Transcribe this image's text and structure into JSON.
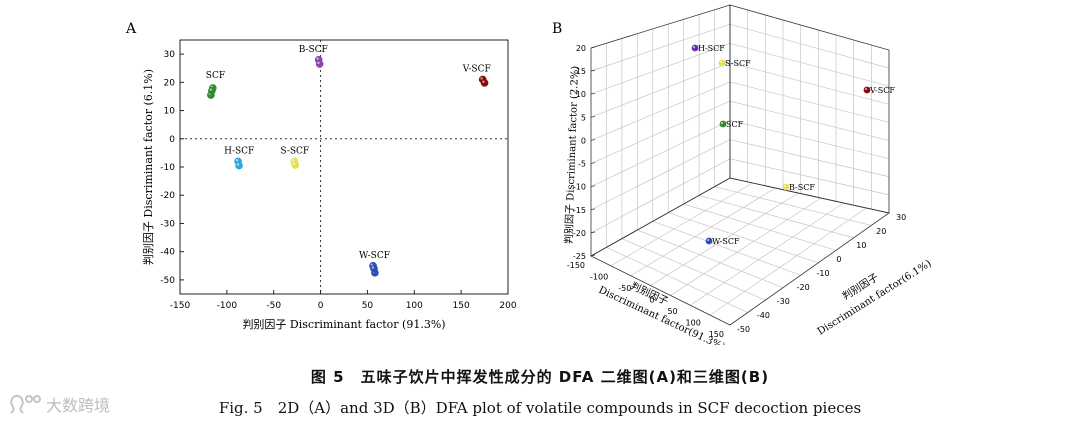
{
  "chart_data": [
    {
      "panel": "A",
      "type": "scatter",
      "xlabel": "判别因子 Discriminant factor (91.3%)",
      "ylabel": "判别因子 Discriminant factor (6.1%)",
      "xlim": [
        -150,
        200
      ],
      "ylim": [
        -55,
        35
      ],
      "xticks": [
        -150,
        -100,
        -50,
        0,
        50,
        100,
        150,
        200
      ],
      "yticks": [
        -50,
        -40,
        -30,
        -20,
        -10,
        0,
        10,
        20,
        30
      ],
      "reference_lines": "dotted lines at x=0 and y=0",
      "series": [
        {
          "name": "SCF",
          "color": "#2e8b2e",
          "points": [
            [
              -115,
              18
            ],
            [
              -117,
              15.5
            ],
            [
              -116,
              17
            ]
          ]
        },
        {
          "name": "B-SCF",
          "color": "#8e44ad",
          "points": [
            [
              -2,
              28
            ],
            [
              -1,
              26.5
            ]
          ]
        },
        {
          "name": "V-SCF",
          "color": "#8b0a0a",
          "points": [
            [
              173,
              21
            ],
            [
              175,
              19.8
            ]
          ]
        },
        {
          "name": "H-SCF",
          "color": "#29a9e0",
          "points": [
            [
              -88,
              -8
            ],
            [
              -87,
              -9.5
            ]
          ]
        },
        {
          "name": "S-SCF",
          "color": "#e5e054",
          "points": [
            [
              -28,
              -8
            ],
            [
              -27,
              -9.3
            ]
          ]
        },
        {
          "name": "W-SCF",
          "color": "#2b4fb3",
          "points": [
            [
              56,
              -45
            ],
            [
              58,
              -47.5
            ],
            [
              57,
              -46
            ]
          ]
        }
      ]
    },
    {
      "panel": "B",
      "type": "scatter",
      "xlabel": "Discriminant factor(91.3%)",
      "xlabel_cn": "判别因子",
      "ylabel": "判别因子 Discriminant factor (2.2%)",
      "zlabel": "Discriminant factor(6.1%)",
      "zlabel_cn": "判别因子",
      "x_ticks": [
        -150,
        -100,
        -50,
        0,
        50,
        100,
        150
      ],
      "depth_ticks": [
        -50,
        -40,
        -30,
        -20,
        -10,
        0,
        10,
        20,
        30
      ],
      "vertical_ticks": [
        -25,
        -20,
        -15,
        -10,
        -5,
        0,
        5,
        10,
        15,
        20
      ],
      "series": [
        {
          "name": "H-SCF",
          "color": "#6a2fb5"
        },
        {
          "name": "S-SCF",
          "color": "#e5e054"
        },
        {
          "name": "V-SCF",
          "color": "#8b0a0a"
        },
        {
          "name": "SCF",
          "color": "#2e8b2e"
        },
        {
          "name": "B-SCF",
          "color": "#e5e054"
        },
        {
          "name": "W-SCF",
          "color": "#2b4fb3"
        }
      ]
    }
  ],
  "panel_labels": {
    "a": "A",
    "b": "B"
  },
  "caption": {
    "cn": "图 5　五味子饮片中挥发性成分的 DFA 二维图(A)和三维图(B)",
    "en": "Fig. 5　2D（A）and 3D（B）DFA plot of volatile compounds in SCF decoction pieces"
  },
  "watermark": "大数跨境"
}
